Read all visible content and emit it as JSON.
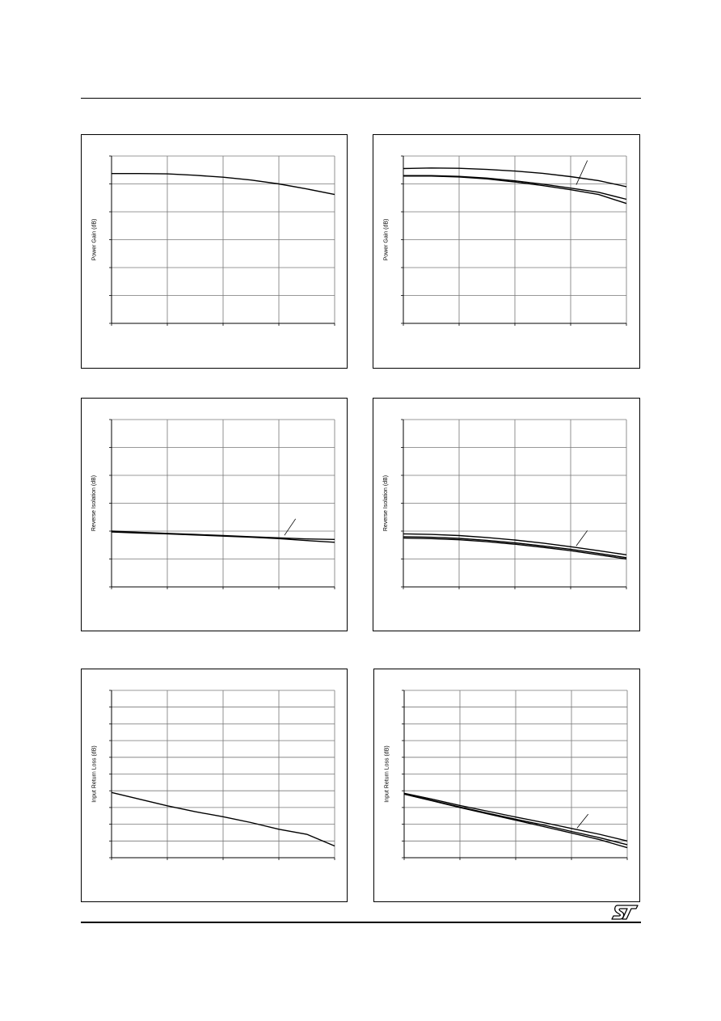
{
  "page": {
    "brand_logo_text": "ST"
  },
  "chart_data": [
    {
      "type": "line",
      "ylabel": "Power Gain (dB)",
      "xlim": [
        0,
        4
      ],
      "ylim": [
        0,
        6
      ],
      "grid": true,
      "series": [
        {
          "x": [
            0,
            0.5,
            1,
            1.5,
            2,
            2.5,
            3,
            3.5,
            4
          ],
          "y": [
            5.37,
            5.37,
            5.36,
            5.31,
            5.24,
            5.14,
            5.0,
            4.82,
            4.62
          ]
        }
      ]
    },
    {
      "type": "line",
      "ylabel": "Power Gain (dB)",
      "xlim": [
        0,
        4
      ],
      "ylim": [
        0,
        6
      ],
      "grid": true,
      "series": [
        {
          "x": [
            0,
            0.5,
            1,
            1.5,
            2,
            2.5,
            3,
            3.5,
            4
          ],
          "y": [
            5.55,
            5.57,
            5.56,
            5.52,
            5.46,
            5.38,
            5.26,
            5.12,
            4.9
          ]
        },
        {
          "x": [
            0,
            0.5,
            1,
            1.5,
            2,
            2.5,
            3,
            3.5,
            4
          ],
          "y": [
            5.3,
            5.3,
            5.27,
            5.21,
            5.11,
            4.99,
            4.85,
            4.7,
            4.45
          ]
        },
        {
          "x": [
            0,
            0.5,
            1,
            1.5,
            2,
            2.5,
            3,
            3.5,
            4
          ],
          "y": [
            5.28,
            5.28,
            5.25,
            5.18,
            5.07,
            4.94,
            4.79,
            4.62,
            4.3
          ]
        }
      ]
    },
    {
      "type": "line",
      "ylabel": "Reverse Isolation (dB)",
      "xlim": [
        0,
        4
      ],
      "ylim": [
        0,
        6
      ],
      "grid": true,
      "series": [
        {
          "x": [
            0,
            0.5,
            1,
            1.5,
            2,
            2.5,
            3,
            3.5,
            4
          ],
          "y": [
            2.0,
            1.96,
            1.92,
            1.88,
            1.84,
            1.8,
            1.76,
            1.72,
            1.7
          ]
        },
        {
          "x": [
            0,
            0.5,
            1,
            1.5,
            2,
            2.5,
            3,
            3.5,
            4
          ],
          "y": [
            1.97,
            1.93,
            1.9,
            1.86,
            1.82,
            1.78,
            1.73,
            1.66,
            1.6
          ]
        }
      ]
    },
    {
      "type": "line",
      "ylabel": "Reverse Isolation (dB)",
      "xlim": [
        0,
        4
      ],
      "ylim": [
        0,
        6
      ],
      "grid": true,
      "series": [
        {
          "x": [
            0,
            0.5,
            1,
            1.5,
            2,
            2.5,
            3,
            3.5,
            4
          ],
          "y": [
            1.9,
            1.88,
            1.84,
            1.77,
            1.68,
            1.57,
            1.44,
            1.3,
            1.15
          ]
        },
        {
          "x": [
            0,
            0.5,
            1,
            1.5,
            2,
            2.5,
            3,
            3.5,
            4
          ],
          "y": [
            1.8,
            1.78,
            1.74,
            1.67,
            1.58,
            1.47,
            1.35,
            1.2,
            1.05
          ]
        },
        {
          "x": [
            0,
            0.5,
            1,
            1.5,
            2,
            2.5,
            3,
            3.5,
            4
          ],
          "y": [
            1.75,
            1.73,
            1.69,
            1.62,
            1.53,
            1.42,
            1.3,
            1.15,
            1.0
          ]
        }
      ]
    },
    {
      "type": "line",
      "ylabel": "Input Return Loss (dB)",
      "xlim": [
        0,
        4
      ],
      "ylim": [
        0,
        10
      ],
      "grid": true,
      "series": [
        {
          "x": [
            0,
            0.5,
            1,
            1.5,
            2,
            2.5,
            3,
            3.5,
            4
          ],
          "y": [
            3.9,
            3.5,
            3.1,
            2.75,
            2.45,
            2.1,
            1.7,
            1.4,
            0.7
          ]
        }
      ]
    },
    {
      "type": "line",
      "ylabel": "Input Return Loss (dB)",
      "xlim": [
        0,
        4
      ],
      "ylim": [
        0,
        10
      ],
      "grid": true,
      "series": [
        {
          "x": [
            0,
            0.5,
            1,
            1.5,
            2,
            2.5,
            3,
            3.5,
            4
          ],
          "y": [
            3.85,
            3.5,
            3.12,
            2.78,
            2.43,
            2.1,
            1.75,
            1.4,
            1.0
          ]
        },
        {
          "x": [
            0,
            0.5,
            1,
            1.5,
            2,
            2.5,
            3,
            3.5,
            4
          ],
          "y": [
            3.8,
            3.42,
            3.03,
            2.66,
            2.3,
            1.95,
            1.57,
            1.2,
            0.78
          ]
        },
        {
          "x": [
            0,
            0.5,
            1,
            1.5,
            2,
            2.5,
            3,
            3.5,
            4
          ],
          "y": [
            3.8,
            3.4,
            3.0,
            2.62,
            2.24,
            1.86,
            1.48,
            1.08,
            0.6
          ]
        }
      ]
    }
  ]
}
